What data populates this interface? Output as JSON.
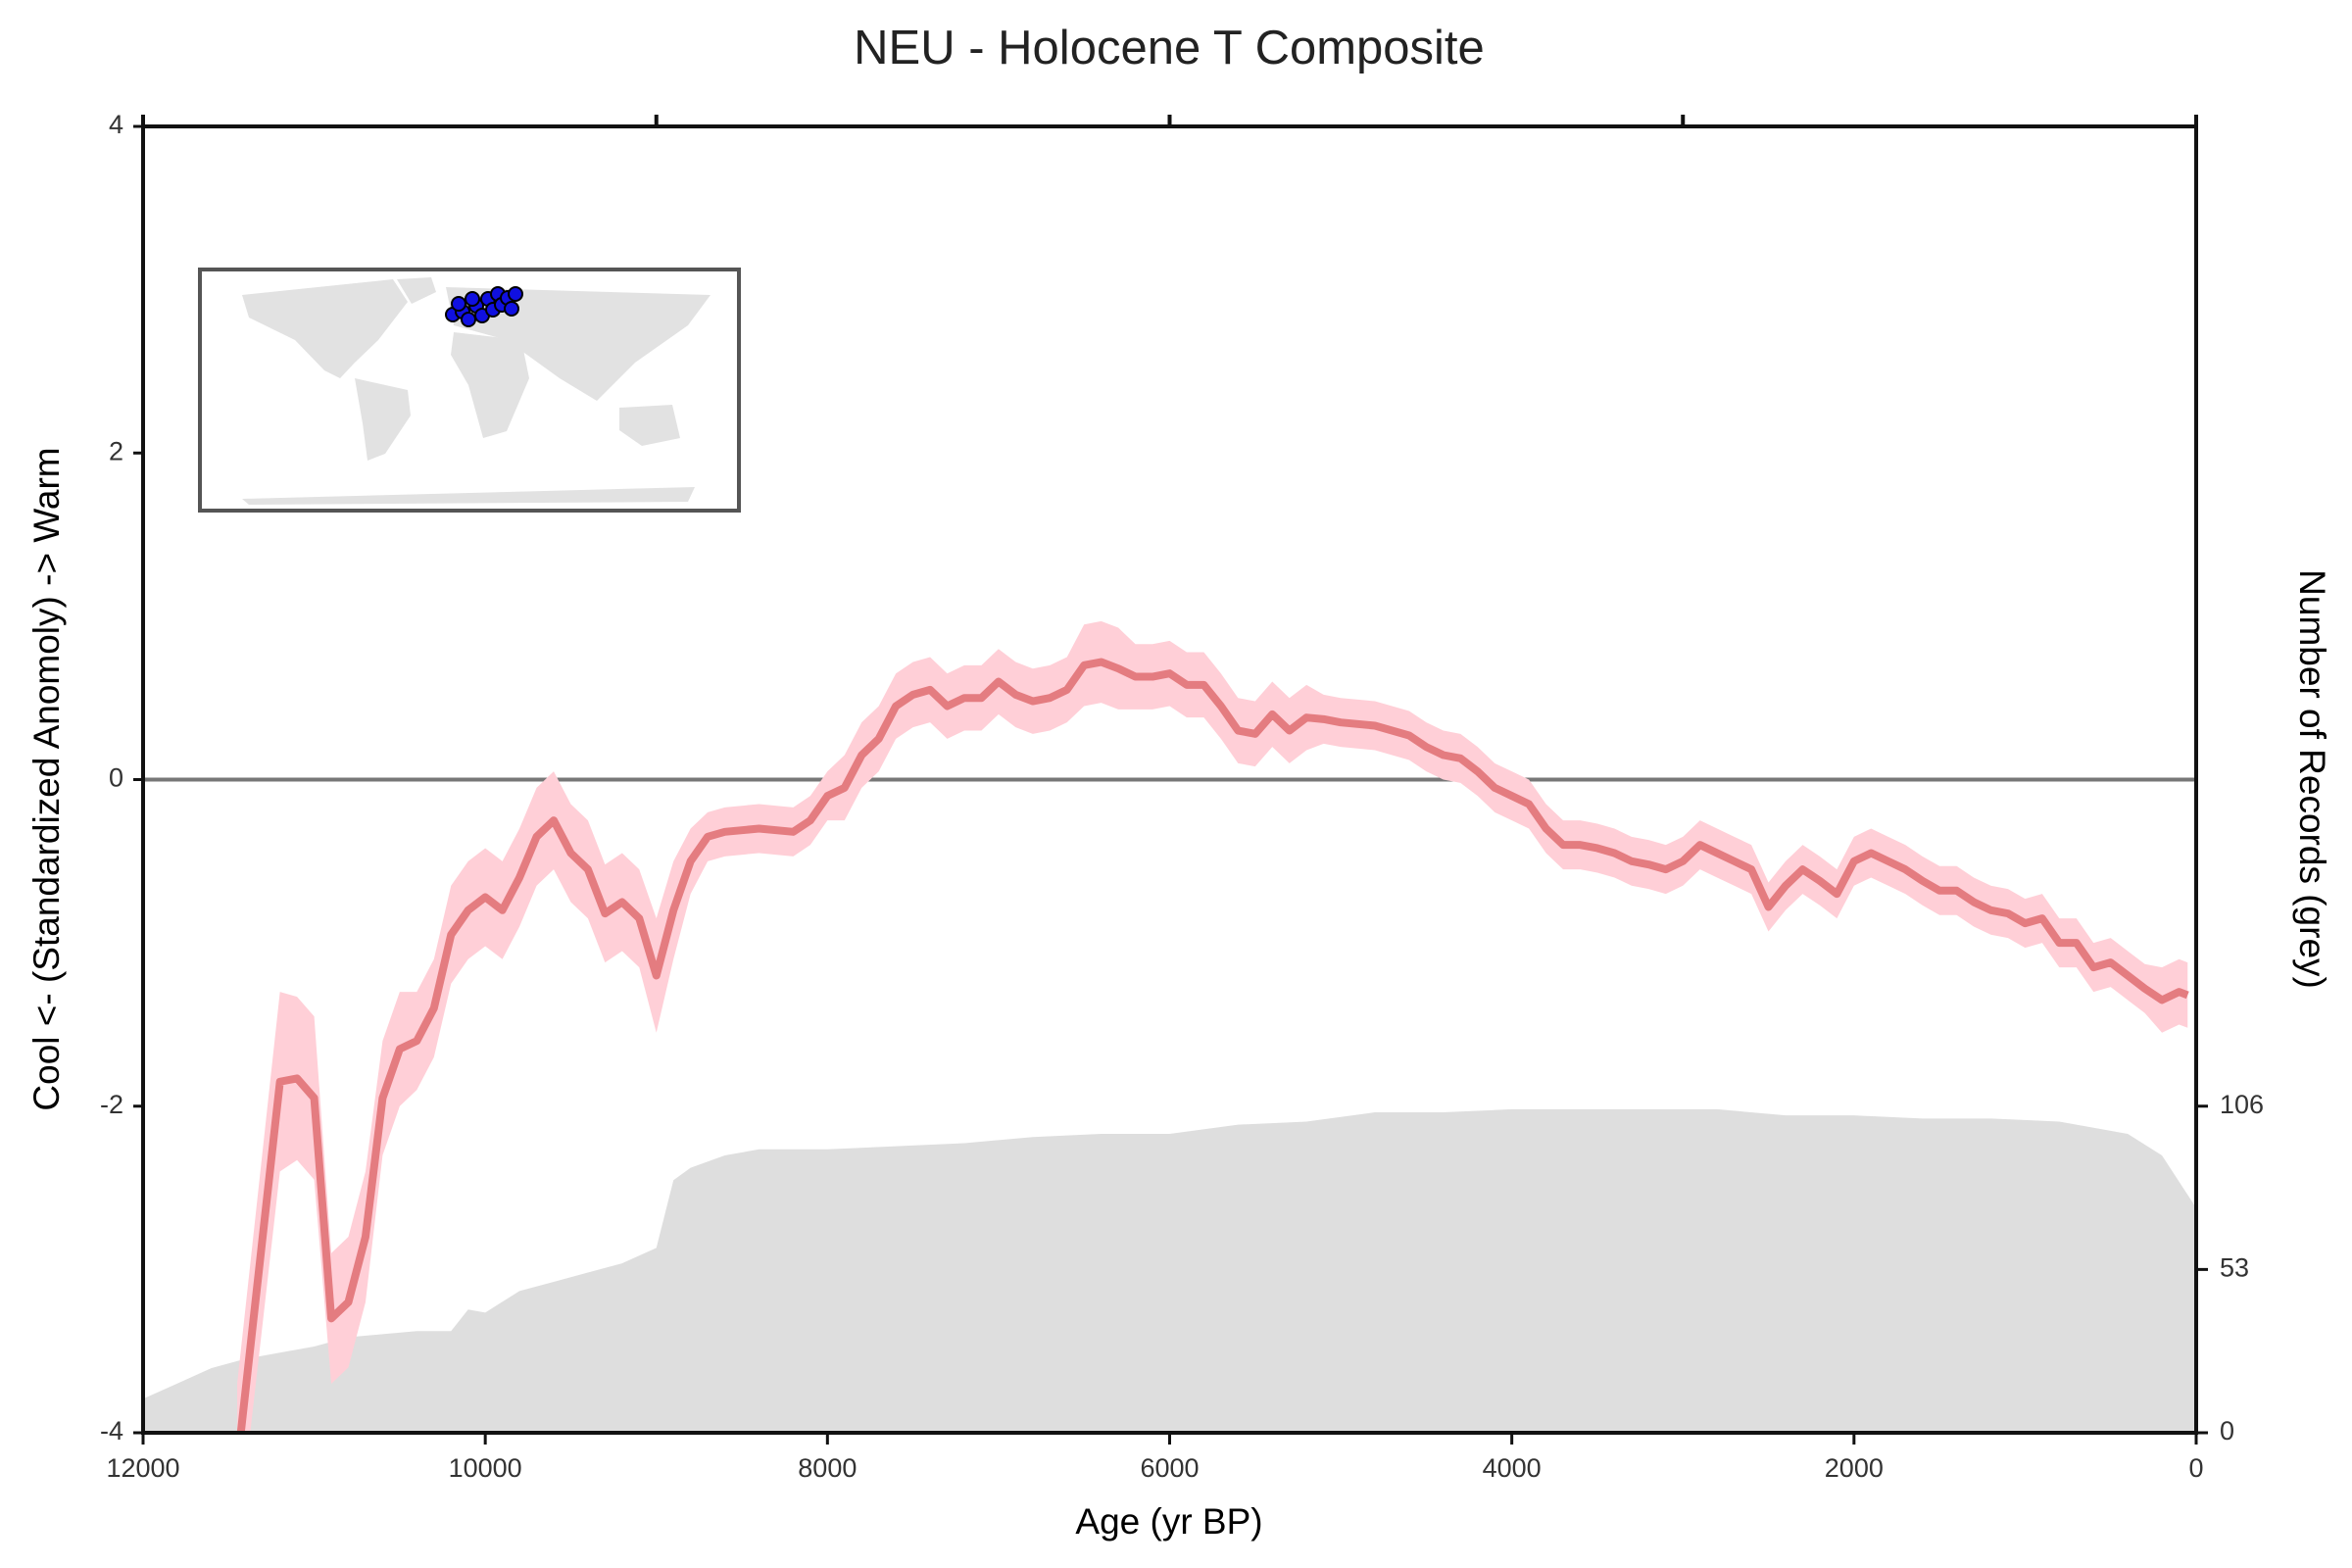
{
  "chart_data": {
    "type": "line",
    "title": "NEU - Holocene T Composite",
    "x_label": "Age (yr BP)",
    "y_label": "Cool <- (Standardized Anomoly) -> Warm",
    "y2_label": "Number of Records (grey)",
    "xlim": [
      12000,
      0
    ],
    "xticks": [
      12000,
      10000,
      8000,
      6000,
      4000,
      2000,
      0
    ],
    "top_ticks": [
      12000,
      9000,
      6000,
      3000,
      0
    ],
    "ylim": [
      -4,
      4
    ],
    "yticks": [
      -4,
      -2,
      0,
      2,
      4
    ],
    "y2lim": [
      0,
      424
    ],
    "y2ticks": [
      0,
      53,
      106
    ],
    "reference_line": 0,
    "series": [
      {
        "x": [
          11450,
          11200,
          11100,
          11000,
          10900,
          10800,
          10700,
          10600,
          10500,
          10400,
          10300,
          10200,
          10100,
          10000,
          9900,
          9800,
          9700,
          9600,
          9500,
          9400,
          9300,
          9200,
          9100,
          9000,
          8900,
          8800,
          8700,
          8600,
          8400,
          8200,
          8100,
          8000,
          7900,
          7800,
          7700,
          7600,
          7500,
          7400,
          7300,
          7200,
          7100,
          7000,
          6900,
          6800,
          6700,
          6600,
          6500,
          6400,
          6300,
          6200,
          6100,
          6000,
          5900,
          5800,
          5700,
          5600,
          5500,
          5400,
          5300,
          5200,
          5100,
          5000,
          4800,
          4600,
          4500,
          4400,
          4300,
          4200,
          4100,
          4000,
          3900,
          3800,
          3700,
          3600,
          3500,
          3400,
          3300,
          3200,
          3100,
          3000,
          2900,
          2800,
          2700,
          2600,
          2500,
          2400,
          2300,
          2200,
          2100,
          2000,
          1900,
          1800,
          1700,
          1600,
          1500,
          1400,
          1300,
          1200,
          1100,
          1000,
          900,
          800,
          700,
          600,
          500,
          400,
          300,
          200,
          100,
          50
        ],
        "values": [
          -4.2,
          -1.85,
          -1.83,
          -1.95,
          -3.3,
          -3.2,
          -2.8,
          -1.95,
          -1.65,
          -1.6,
          -1.4,
          -0.95,
          -0.8,
          -0.72,
          -0.8,
          -0.6,
          -0.35,
          -0.25,
          -0.45,
          -0.55,
          -0.82,
          -0.75,
          -0.85,
          -1.2,
          -0.8,
          -0.5,
          -0.35,
          -0.32,
          -0.3,
          -0.32,
          -0.25,
          -0.1,
          -0.05,
          0.15,
          0.25,
          0.45,
          0.52,
          0.55,
          0.45,
          0.5,
          0.5,
          0.6,
          0.52,
          0.48,
          0.5,
          0.55,
          0.7,
          0.72,
          0.68,
          0.63,
          0.63,
          0.65,
          0.58,
          0.58,
          0.45,
          0.3,
          0.28,
          0.4,
          0.3,
          0.38,
          0.37,
          0.35,
          0.33,
          0.27,
          0.2,
          0.15,
          0.13,
          0.05,
          -0.05,
          -0.1,
          -0.15,
          -0.3,
          -0.4,
          -0.4,
          -0.42,
          -0.45,
          -0.5,
          -0.52,
          -0.55,
          -0.5,
          -0.4,
          -0.45,
          -0.5,
          -0.55,
          -0.78,
          -0.65,
          -0.55,
          -0.62,
          -0.7,
          -0.5,
          -0.45,
          -0.5,
          -0.55,
          -0.62,
          -0.68,
          -0.68,
          -0.75,
          -0.8,
          -0.82,
          -0.88,
          -0.85,
          -1.0,
          -1.0,
          -1.15,
          -1.12,
          -1.2,
          -1.28,
          -1.35,
          -1.3,
          -1.32
        ],
        "error": [
          0.5,
          0.55,
          0.5,
          0.5,
          0.4,
          0.4,
          0.4,
          0.35,
          0.35,
          0.3,
          0.3,
          0.3,
          0.3,
          0.3,
          0.3,
          0.3,
          0.3,
          0.3,
          0.3,
          0.3,
          0.3,
          0.3,
          0.3,
          0.35,
          0.3,
          0.2,
          0.15,
          0.15,
          0.15,
          0.15,
          0.15,
          0.15,
          0.2,
          0.2,
          0.2,
          0.2,
          0.2,
          0.2,
          0.2,
          0.2,
          0.2,
          0.2,
          0.2,
          0.2,
          0.2,
          0.2,
          0.25,
          0.25,
          0.25,
          0.2,
          0.2,
          0.2,
          0.2,
          0.2,
          0.2,
          0.2,
          0.2,
          0.2,
          0.2,
          0.2,
          0.15,
          0.15,
          0.15,
          0.15,
          0.15,
          0.15,
          0.15,
          0.15,
          0.15,
          0.15,
          0.15,
          0.15,
          0.15,
          0.15,
          0.15,
          0.15,
          0.15,
          0.15,
          0.15,
          0.15,
          0.15,
          0.15,
          0.15,
          0.15,
          0.15,
          0.15,
          0.15,
          0.15,
          0.15,
          0.15,
          0.15,
          0.15,
          0.15,
          0.15,
          0.15,
          0.15,
          0.15,
          0.15,
          0.15,
          0.15,
          0.15,
          0.15,
          0.15,
          0.15,
          0.15,
          0.15,
          0.15,
          0.2,
          0.2,
          0.2
        ],
        "color": "#e47c80",
        "band_color": "#ffcfd7"
      },
      {
        "type": "area",
        "axis": "y2",
        "color": "#dedede",
        "x": [
          12000,
          11800,
          11600,
          11400,
          11200,
          11000,
          10800,
          10600,
          10400,
          10200,
          10100,
          10000,
          9800,
          9600,
          9400,
          9200,
          9000,
          8900,
          8800,
          8600,
          8400,
          8000,
          7600,
          7200,
          6800,
          6400,
          6000,
          5600,
          5200,
          4800,
          4400,
          4000,
          3600,
          3200,
          2800,
          2400,
          2000,
          1600,
          1200,
          800,
          400,
          200,
          0
        ],
        "values": [
          11,
          16,
          21,
          24,
          26,
          28,
          31,
          32,
          33,
          33,
          40,
          39,
          46,
          49,
          52,
          55,
          60,
          82,
          86,
          90,
          92,
          92,
          93,
          94,
          96,
          97,
          97,
          100,
          101,
          104,
          104,
          105,
          105,
          105,
          105,
          103,
          103,
          102,
          102,
          101,
          97,
          90,
          73
        ]
      }
    ]
  }
}
